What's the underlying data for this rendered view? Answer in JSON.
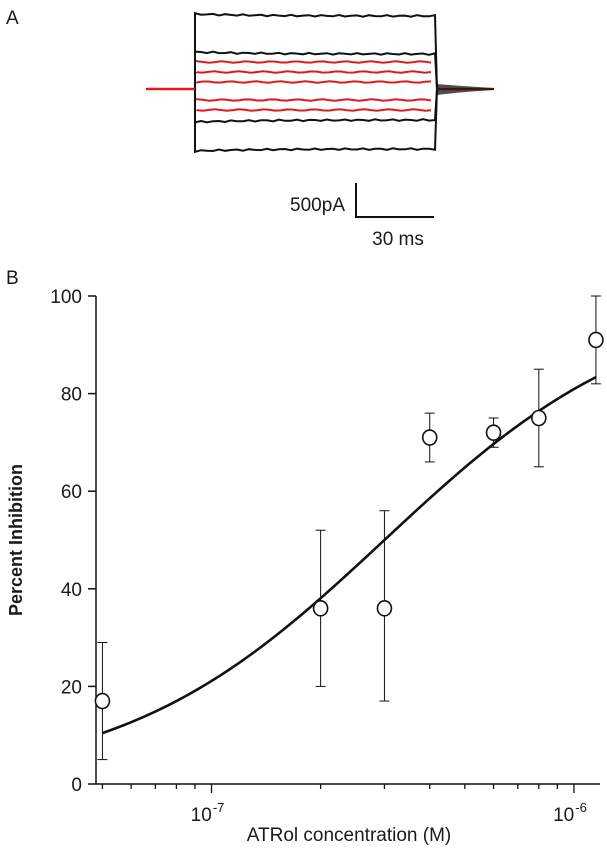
{
  "panel_a": {
    "label": "A",
    "scale_bar": {
      "current": "500pA",
      "time": "30 ms"
    },
    "colors": {
      "control": "#111111",
      "drug": "#e0191e"
    }
  },
  "panel_b": {
    "label": "B"
  },
  "chart_data": {
    "type": "scatter",
    "title": "",
    "xlabel": "ATRol concentration (M)",
    "ylabel": "Percent Inhibition",
    "xscale": "log",
    "xlim": [
      4.8e-08,
      1.18e-06
    ],
    "ylim": [
      0,
      100
    ],
    "x_tick_labels": [
      {
        "value": 1e-07,
        "base": "10",
        "exp": "-7"
      },
      {
        "value": 1e-06,
        "base": "10",
        "exp": "-6"
      }
    ],
    "y_ticks": [
      0,
      20,
      40,
      60,
      80,
      100
    ],
    "y_tick_labels": [
      "0",
      "20",
      "40",
      "60",
      "80",
      "100"
    ],
    "series": [
      {
        "marker": "open-circle",
        "x": [
          5e-08,
          2e-07,
          3e-07,
          4e-07,
          6e-07,
          8e-07,
          1.15e-06
        ],
        "y": [
          17,
          36,
          36,
          71,
          72,
          75,
          91
        ],
        "err_low": [
          12,
          16,
          19,
          5,
          3,
          10,
          9
        ],
        "err_high": [
          12,
          16,
          20,
          5,
          3,
          10,
          9
        ]
      }
    ],
    "fit": {
      "type": "hill",
      "ic50": 3e-07,
      "hill_slope": 1.2,
      "x_range": [
        5e-08,
        1.15e-06
      ]
    },
    "grid": false,
    "legend": "none"
  }
}
